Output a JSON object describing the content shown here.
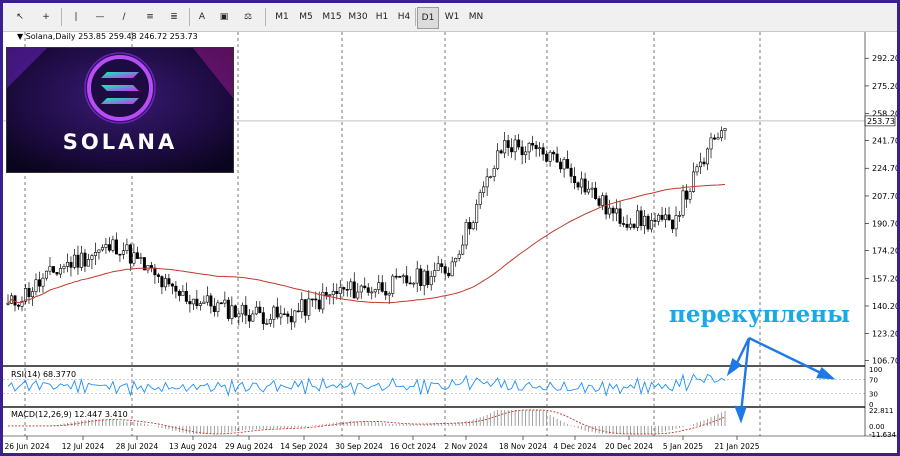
{
  "toolbar": {
    "icons": [
      "cursor-icon",
      "crosshair-icon",
      "vertical-line-icon",
      "horizontal-line-icon",
      "trendline-icon",
      "equidistant-channel-icon",
      "fibonacci-icon",
      "text-icon",
      "text-label-icon",
      "shapes-icon"
    ],
    "timeframes": [
      "M1",
      "M5",
      "M15",
      "M30",
      "H1",
      "H4",
      "D1",
      "W1",
      "MN"
    ]
  },
  "symbol": {
    "name": "Solana,Daily",
    "ohlc": "253.85 259.48 246.72 253.73"
  },
  "logo": {
    "text": "SOLANA"
  },
  "annotation": {
    "text": "перекуплены"
  },
  "price_axis": {
    "ticks": [
      "292.20",
      "275.20",
      "258.20",
      "241.70",
      "224.70",
      "207.70",
      "190.70",
      "174.20",
      "157.20",
      "140.20",
      "123.20",
      "106.70"
    ],
    "current_price": "253.73"
  },
  "date_axis": {
    "labels": [
      "26 Jun 2024",
      "12 Jul 2024",
      "28 Jul 2024",
      "13 Aug 2024",
      "29 Aug 2024",
      "14 Sep 2024",
      "30 Sep 2024",
      "16 Oct 2024",
      "2 Nov 2024",
      "18 Nov 2024",
      "4 Dec 2024",
      "20 Dec 2024",
      "5 Jan 2025",
      "21 Jan 2025"
    ]
  },
  "rsi": {
    "label": "RSI(14) 68.3770",
    "levels": [
      "100",
      "70",
      "30",
      "0"
    ]
  },
  "macd": {
    "label": "MACD(12,26,9) 12.447 3.410",
    "levels": [
      "22.811",
      "0.00",
      "-11.634"
    ]
  },
  "colors": {
    "frame": "#3a1f8f",
    "candle": "#000000",
    "ma": "#c0392b",
    "rsi_line": "#1e90ff",
    "macd_signal": "#c0392b",
    "annotation": "#19a9e6",
    "arrow": "#1e78e6"
  },
  "chart_data": {
    "type": "line",
    "x": [
      "26 Jun 2024",
      "12 Jul 2024",
      "28 Jul 2024",
      "13 Aug 2024",
      "29 Aug 2024",
      "14 Sep 2024",
      "30 Sep 2024",
      "16 Oct 2024",
      "2 Nov 2024",
      "18 Nov 2024",
      "4 Dec 2024",
      "20 Dec 2024",
      "5 Jan 2025",
      "21 Jan 2025"
    ],
    "series": [
      {
        "name": "",
        "values": [
          140,
          165,
          178,
          148,
          138,
          133,
          149,
          153,
          163,
          240,
          230,
          195,
          190,
          254
        ]
      }
    ],
    "ylim": [
      106.7,
      292.2
    ]
  }
}
